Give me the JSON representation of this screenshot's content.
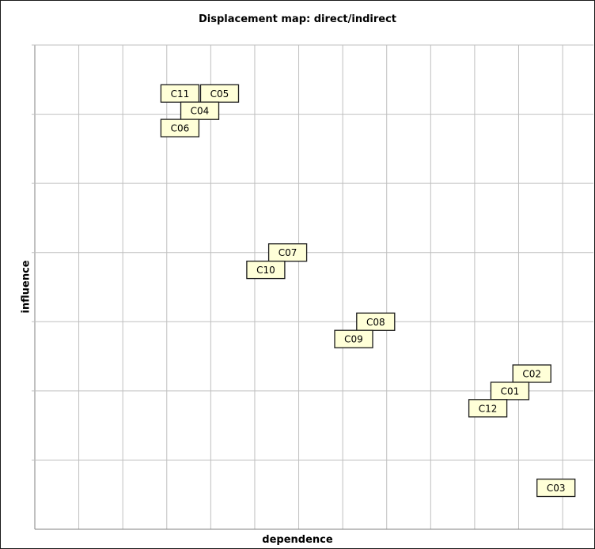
{
  "chart_data": {
    "type": "scatter",
    "title": "Displacement map: direct/indirect",
    "xlabel": "dependence",
    "ylabel": "influence",
    "grid": true,
    "xlim": [
      0,
      12.7
    ],
    "ylim": [
      0,
      7
    ],
    "colors": {
      "label_fill": "#ffffd8",
      "label_border": "#1a1a1a",
      "grid": "#bfbfbf",
      "axis": "#808080"
    },
    "points": [
      {
        "label": "C11",
        "x": 3.3,
        "y": 6.3
      },
      {
        "label": "C05",
        "x": 4.2,
        "y": 6.3
      },
      {
        "label": "C04",
        "x": 3.75,
        "y": 6.05
      },
      {
        "label": "C06",
        "x": 3.3,
        "y": 5.8
      },
      {
        "label": "C07",
        "x": 5.75,
        "y": 4.0
      },
      {
        "label": "C10",
        "x": 5.25,
        "y": 3.75
      },
      {
        "label": "C08",
        "x": 7.75,
        "y": 3.0
      },
      {
        "label": "C09",
        "x": 7.25,
        "y": 2.75
      },
      {
        "label": "C02",
        "x": 11.3,
        "y": 2.25
      },
      {
        "label": "C01",
        "x": 10.8,
        "y": 2.0
      },
      {
        "label": "C12",
        "x": 10.3,
        "y": 1.75
      },
      {
        "label": "C03",
        "x": 11.85,
        "y": 0.6
      }
    ]
  }
}
